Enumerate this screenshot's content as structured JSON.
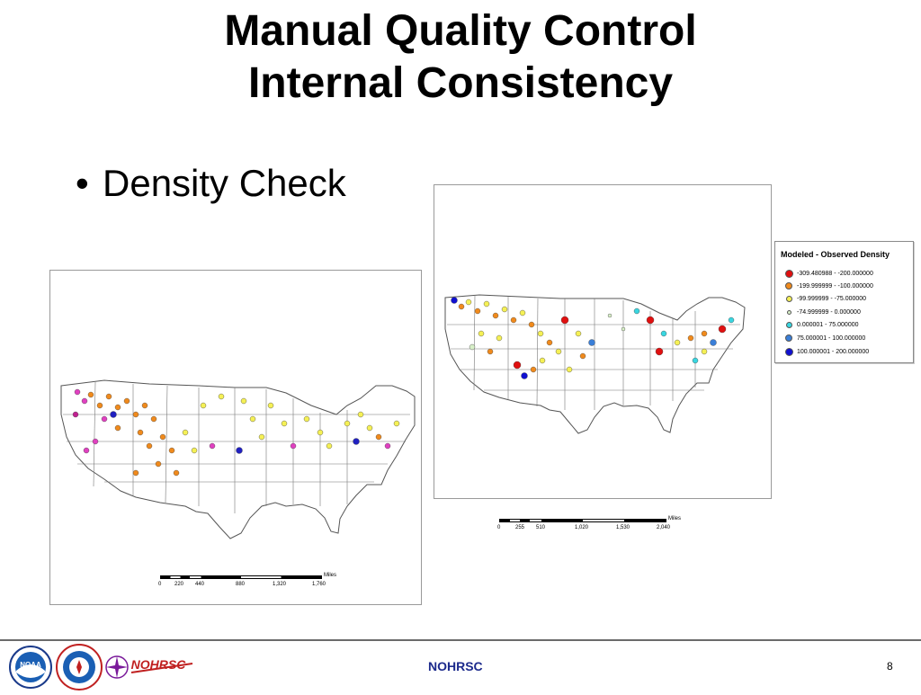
{
  "title": {
    "line1": "Manual Quality Control",
    "line2": "Internal Consistency"
  },
  "bullet": {
    "marker": "•",
    "text": "Density Check"
  },
  "map_left": {
    "scale_unit": "Miles",
    "scale_ticks": [
      "0",
      "220",
      "440",
      "880",
      "1,320",
      "1,760"
    ]
  },
  "map_right": {
    "scale_unit": "Miles",
    "scale_ticks": [
      "0",
      "255",
      "510",
      "1,020",
      "1,530",
      "2,040"
    ]
  },
  "legend": {
    "title": "Modeled - Observed Density",
    "items": [
      {
        "label": "-309.480988 - -200.000000",
        "color": "#e01010",
        "size": 9
      },
      {
        "label": "-199.999999 - -100.000000",
        "color": "#f08a1c",
        "size": 8
      },
      {
        "label": "-99.999999 - -75.000000",
        "color": "#f5f055",
        "size": 7
      },
      {
        "label": "-74.999999 - 0.000000",
        "color": "#d8f0c8",
        "size": 5
      },
      {
        "label": "0.000001 - 75.000000",
        "color": "#39d6e0",
        "size": 7
      },
      {
        "label": "75.000001 - 100.000000",
        "color": "#3a7fd8",
        "size": 8
      },
      {
        "label": "100.000001 - 200.000000",
        "color": "#1010d0",
        "size": 9
      }
    ]
  },
  "footer": {
    "org": "NOHRSC",
    "page": "8",
    "logo_text": "NOHRSC",
    "noaa_text": "NOAA"
  }
}
